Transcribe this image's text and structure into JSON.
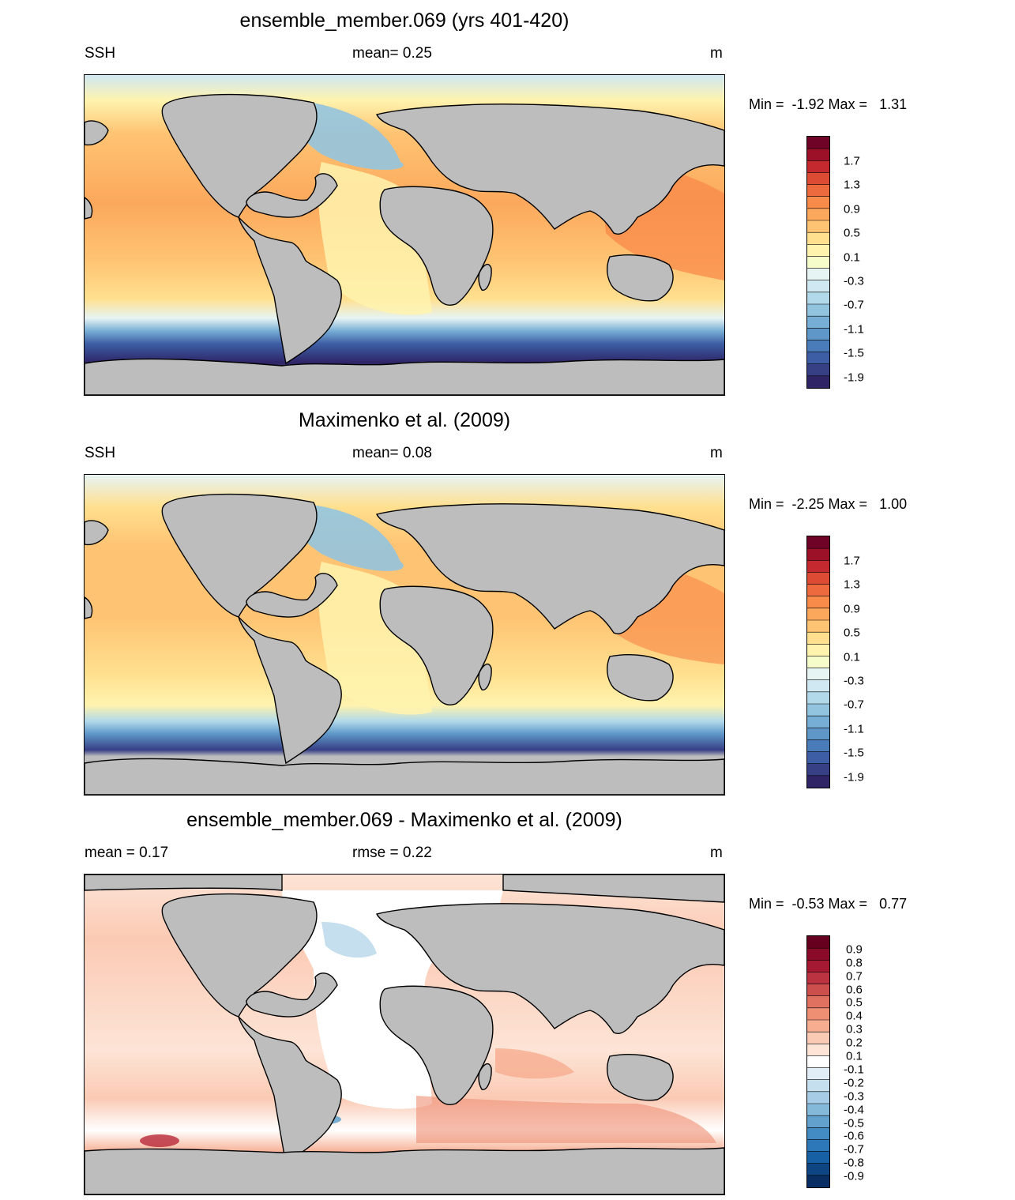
{
  "panels": [
    {
      "id": "model",
      "title": "ensemble_member.069 (yrs 401-420)",
      "left_label": "SSH",
      "center_label": "mean=   0.25",
      "right_label": "m",
      "minmax": "Min =  -1.92 Max =   1.31",
      "colorbar": {
        "colors": [
          "#2e2466",
          "#373f85",
          "#3d5ea4",
          "#4a7cb9",
          "#5e97c8",
          "#77aed5",
          "#93c4df",
          "#b1d9ea",
          "#cfe8f2",
          "#e6f4f4",
          "#f7fccb",
          "#fff3ae",
          "#ffe08f",
          "#fec473",
          "#fca85c",
          "#f88a4a",
          "#ed6a3f",
          "#de4b35",
          "#c3292e",
          "#9c1128",
          "#6e0327"
        ],
        "labels": [
          "1.7",
          "1.3",
          "0.9",
          "0.5",
          "0.1",
          "-0.3",
          "-0.7",
          "-1.1",
          "-1.5",
          "-1.9"
        ]
      }
    },
    {
      "id": "obs",
      "title": "Maximenko et al. (2009)",
      "left_label": "SSH",
      "center_label": "mean=   0.08",
      "right_label": "m",
      "minmax": "Min =  -2.25 Max =   1.00",
      "colorbar": {
        "colors": [
          "#2e2466",
          "#373f85",
          "#3d5ea4",
          "#4a7cb9",
          "#5e97c8",
          "#77aed5",
          "#93c4df",
          "#b1d9ea",
          "#cfe8f2",
          "#e6f4f4",
          "#f7fccb",
          "#fff3ae",
          "#ffe08f",
          "#fec473",
          "#fca85c",
          "#f88a4a",
          "#ed6a3f",
          "#de4b35",
          "#c3292e",
          "#9c1128",
          "#6e0327"
        ],
        "labels": [
          "1.7",
          "1.3",
          "0.9",
          "0.5",
          "0.1",
          "-0.3",
          "-0.7",
          "-1.1",
          "-1.5",
          "-1.9"
        ]
      }
    },
    {
      "id": "diff",
      "title": "ensemble_member.069 - Maximenko et al. (2009)",
      "left_label": "mean =   0.17",
      "center_label": "rmse =   0.22",
      "right_label": "m",
      "minmax": "Min =  -0.53 Max =   0.77",
      "colorbar": {
        "colors": [
          "#082e63",
          "#0d4683",
          "#1860a5",
          "#2d78b8",
          "#438cc3",
          "#62a1cd",
          "#85b9da",
          "#a6cde5",
          "#c5dfee",
          "#e2eef7",
          "#ffffff",
          "#fde4d6",
          "#fbcab4",
          "#f6ad90",
          "#ee8f74",
          "#e07060",
          "#cd4f4d",
          "#bb3240",
          "#a51933",
          "#8a0b29",
          "#67001f"
        ],
        "labels": [
          "0.9",
          "0.8",
          "0.7",
          "0.6",
          "0.5",
          "0.4",
          "0.3",
          "0.2",
          "0.1",
          "-0.1",
          "-0.2",
          "-0.3",
          "-0.4",
          "-0.5",
          "-0.6",
          "-0.7",
          "-0.8",
          "-0.9"
        ]
      }
    }
  ]
}
